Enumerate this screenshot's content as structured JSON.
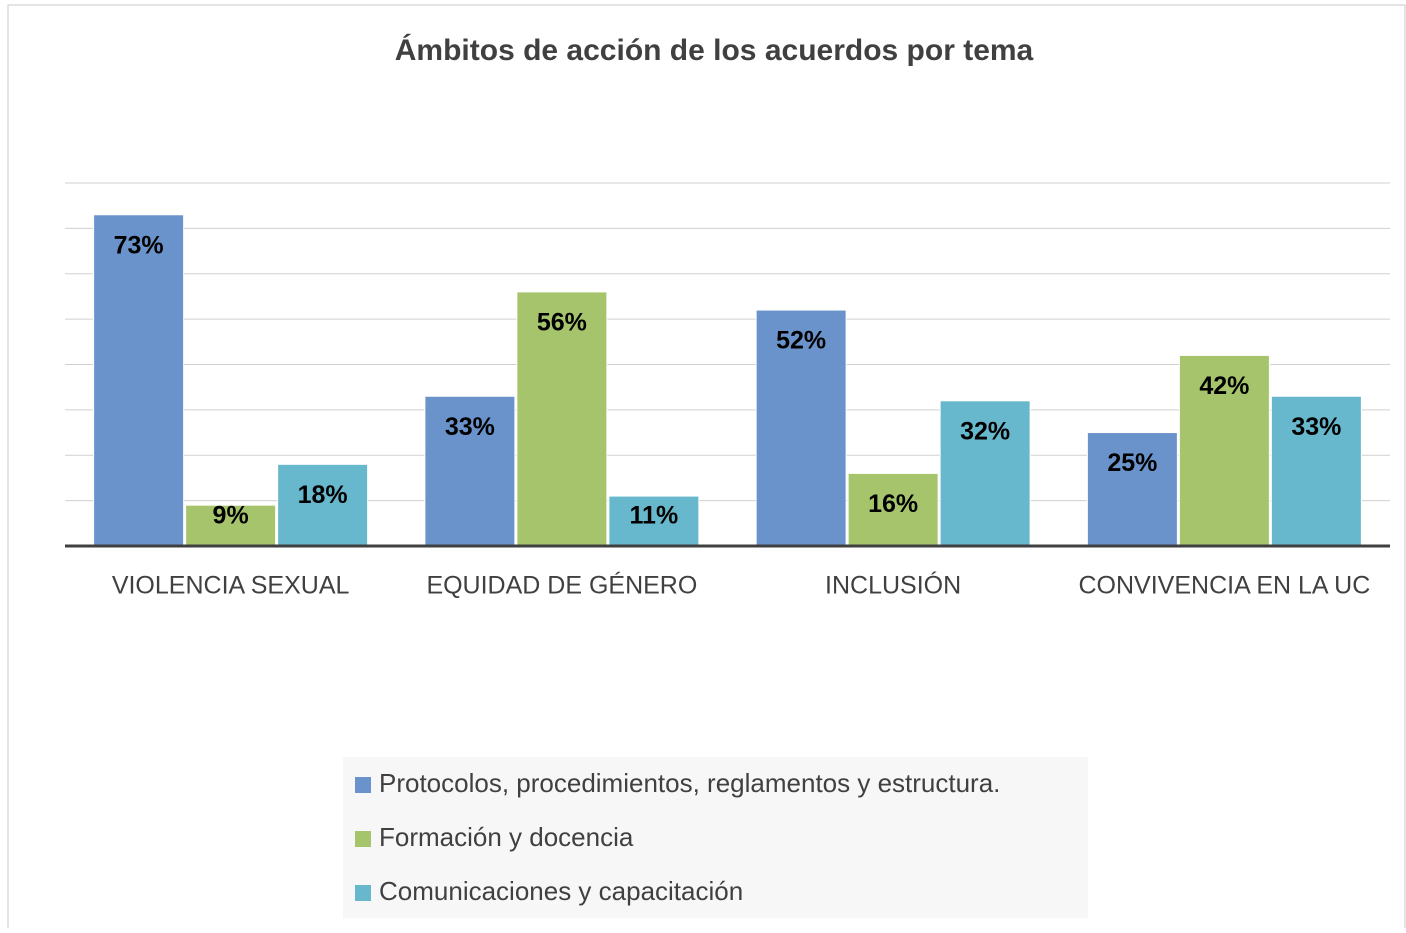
{
  "chart_data": {
    "type": "bar",
    "title": "Ámbitos de acción de los acuerdos por tema",
    "categories": [
      "VIOLENCIA SEXUAL",
      "EQUIDAD DE GÉNERO",
      "INCLUSIÓN",
      "CONVIVENCIA EN LA UC"
    ],
    "series": [
      {
        "name": "Protocolos, procedimientos, reglamentos y estructura.",
        "color": "#6a93cb",
        "values": [
          73,
          33,
          52,
          25
        ],
        "value_labels": [
          "73%",
          "33%",
          "52%",
          "25%"
        ]
      },
      {
        "name": "Formación y docencia",
        "color": "#a6c46b",
        "values": [
          9,
          56,
          16,
          42
        ],
        "value_labels": [
          "9%",
          "56%",
          "16%",
          "42%"
        ]
      },
      {
        "name": "Comunicaciones y capacitación",
        "color": "#67b8cc",
        "values": [
          18,
          11,
          32,
          33
        ],
        "value_labels": [
          "18%",
          "11%",
          "32%",
          "33%"
        ]
      }
    ],
    "ylim": [
      0,
      80
    ],
    "yticks": [
      0,
      10,
      20,
      30,
      40,
      50,
      60,
      70,
      80
    ],
    "grid": true,
    "legend": "bottom"
  }
}
